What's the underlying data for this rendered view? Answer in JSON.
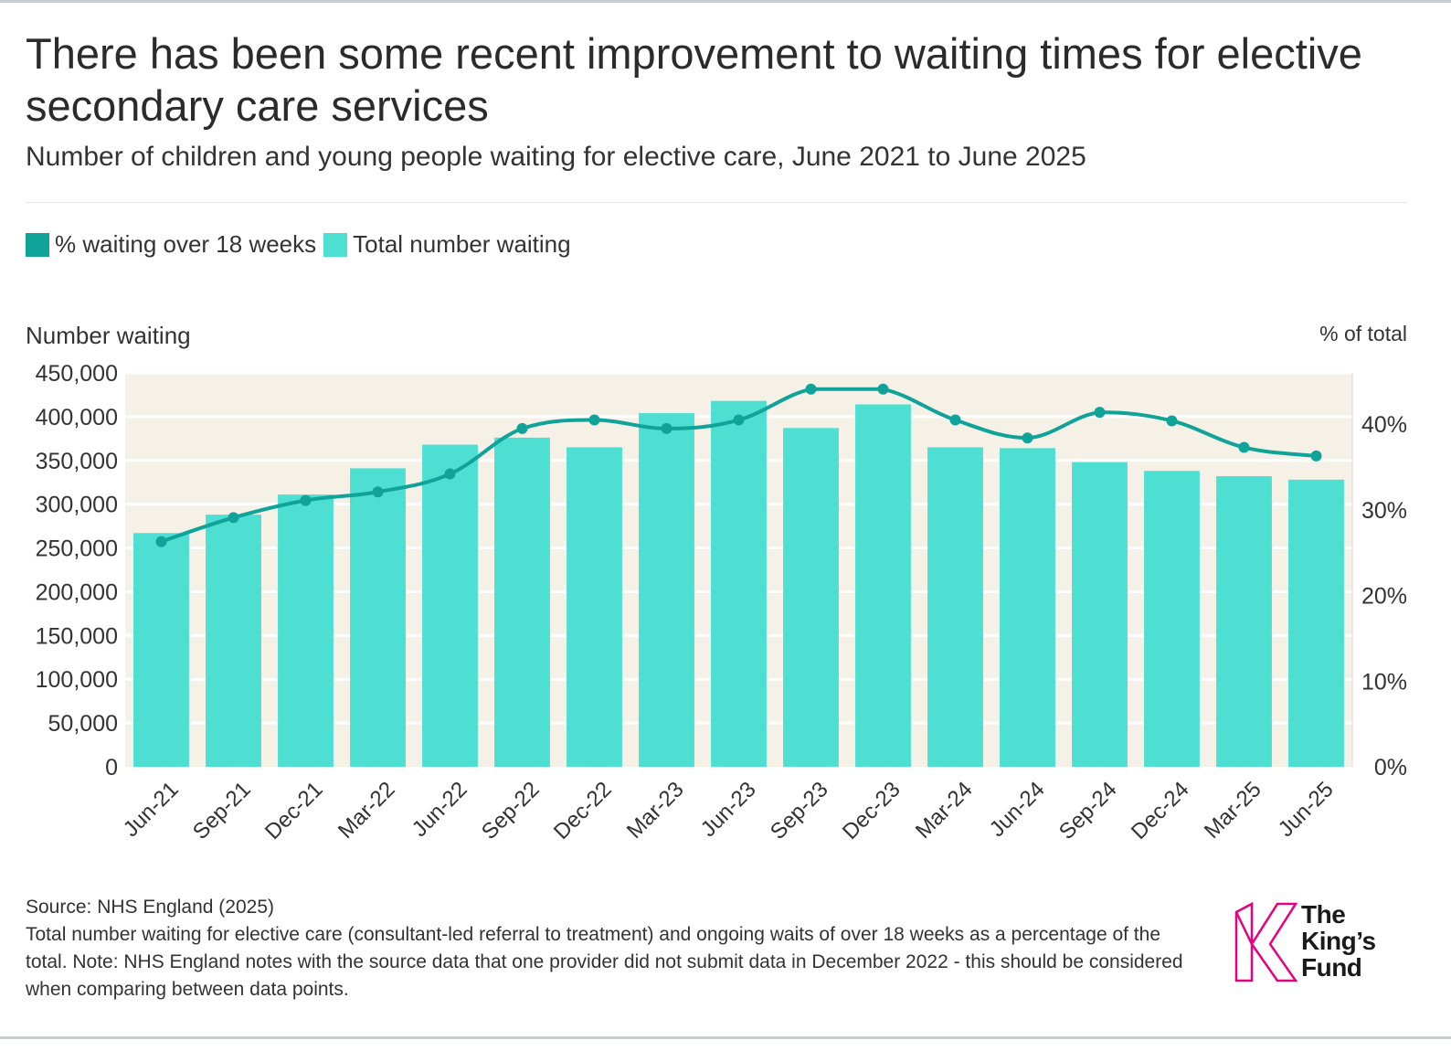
{
  "header": {
    "title": "There has been some recent improvement to waiting times for elective secondary care services",
    "subtitle": "Number of children and young people waiting for elective care, June 2021 to June 2025"
  },
  "legend": {
    "items": [
      {
        "label": "% waiting over 18 weeks",
        "color": "#0fa39a"
      },
      {
        "label": "Total number waiting",
        "color": "#4ddfd2"
      }
    ]
  },
  "axes": {
    "left_title": "Number waiting",
    "right_title": "% of total"
  },
  "chart_data": {
    "type": "bar",
    "categories": [
      "Jun-21",
      "Sep-21",
      "Dec-21",
      "Mar-22",
      "Jun-22",
      "Sep-22",
      "Dec-22",
      "Mar-23",
      "Jun-23",
      "Sep-23",
      "Dec-23",
      "Mar-24",
      "Jun-24",
      "Sep-24",
      "Dec-24",
      "Mar-25",
      "Jun-25"
    ],
    "series": [
      {
        "name": "Total number waiting",
        "type": "bar",
        "axis": "left",
        "color": "#4ddfd2",
        "values": [
          267000,
          288000,
          311000,
          341000,
          368000,
          376000,
          365000,
          404000,
          418000,
          387000,
          414000,
          365000,
          364000,
          348000,
          338000,
          332000,
          328000
        ]
      },
      {
        "name": "% waiting over 18 weeks",
        "type": "line",
        "axis": "right",
        "color": "#0fa39a",
        "values": [
          26.3,
          29.1,
          31.1,
          32.1,
          34.2,
          39.5,
          40.5,
          39.5,
          40.5,
          44.1,
          44.1,
          40.5,
          38.4,
          41.4,
          40.4,
          37.3,
          36.3
        ]
      }
    ],
    "left_axis": {
      "title": "Number waiting",
      "ylim": [
        0,
        450000
      ],
      "ticks": [
        0,
        50000,
        100000,
        150000,
        200000,
        250000,
        300000,
        350000,
        400000,
        450000
      ],
      "tick_labels": [
        "0",
        "50,000",
        "100,000",
        "150,000",
        "200,000",
        "250,000",
        "300,000",
        "350,000",
        "400,000",
        "450,000"
      ]
    },
    "right_axis": {
      "title": "% of total",
      "ylim": [
        0,
        46
      ],
      "ticks": [
        0,
        10,
        20,
        30,
        40
      ],
      "tick_labels": [
        "0%",
        "10%",
        "20%",
        "30%",
        "40%"
      ]
    },
    "grid": true,
    "legend_position": "top-left"
  },
  "footer": {
    "source": "Source: NHS England (2025)",
    "note": "Total number waiting for elective care (consultant-led referral to treatment) and ongoing waits of over 18 weeks as a percentage of the total. Note: NHS England notes with the source data that one provider did not submit data in December 2022 - this should be considered when comparing between data points.",
    "logo_line1": "The",
    "logo_line2": "King’s",
    "logo_line3": "Fund",
    "logo_color": "#e6007e"
  }
}
